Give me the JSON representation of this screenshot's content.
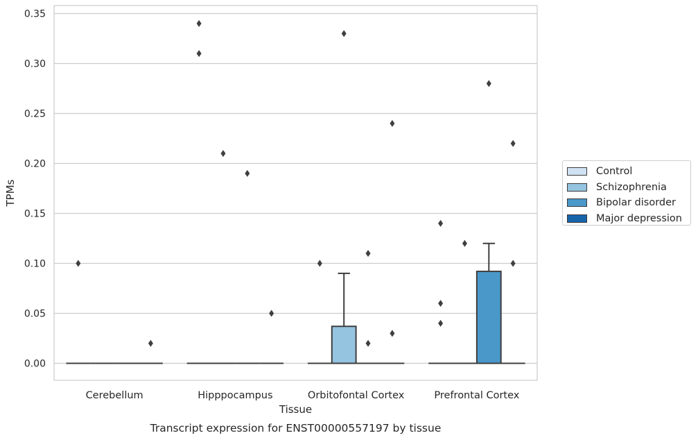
{
  "chart_data": {
    "type": "box",
    "title": "Transcript expression for ENST00000557197 by tissue",
    "xlabel": "Tissue",
    "ylabel": "TPMs",
    "categories": [
      "Cerebellum",
      "Hipppocampus",
      "Orbitofontal Cortex",
      "Prefrontal Cortex"
    ],
    "ylim": [
      -0.017,
      0.358
    ],
    "yticks": [
      "0.00",
      "0.05",
      "0.10",
      "0.15",
      "0.20",
      "0.25",
      "0.30",
      "0.35"
    ],
    "grid": true,
    "legend_position": "right",
    "series": [
      {
        "name": "Control",
        "color": "#d0e1f2",
        "boxes": [
          {
            "q1": 0,
            "median": 0,
            "q3": 0,
            "whisker_low": 0,
            "whisker_high": 0,
            "outliers": [
              0.1
            ]
          },
          {
            "q1": 0,
            "median": 0,
            "q3": 0,
            "whisker_low": 0,
            "whisker_high": 0,
            "outliers": [
              0.34,
              0.31
            ]
          },
          {
            "q1": 0,
            "median": 0,
            "q3": 0,
            "whisker_low": 0,
            "whisker_high": 0,
            "outliers": [
              0.1
            ]
          },
          {
            "q1": 0,
            "median": 0,
            "q3": 0,
            "whisker_low": 0,
            "whisker_high": 0,
            "outliers": [
              0.14,
              0.06,
              0.04
            ]
          }
        ]
      },
      {
        "name": "Schizophrenia",
        "color": "#94c4df",
        "boxes": [
          {
            "q1": 0,
            "median": 0,
            "q3": 0,
            "whisker_low": 0,
            "whisker_high": 0,
            "outliers": []
          },
          {
            "q1": 0,
            "median": 0,
            "q3": 0,
            "whisker_low": 0,
            "whisker_high": 0,
            "outliers": [
              0.21
            ]
          },
          {
            "q1": 0,
            "median": 0,
            "q3": 0.037,
            "whisker_low": 0,
            "whisker_high": 0.09,
            "outliers": [
              0.33
            ]
          },
          {
            "q1": 0,
            "median": 0,
            "q3": 0,
            "whisker_low": 0,
            "whisker_high": 0,
            "outliers": [
              0.12
            ]
          }
        ]
      },
      {
        "name": "Bipolar disorder",
        "color": "#4a98c9",
        "boxes": [
          {
            "q1": 0,
            "median": 0,
            "q3": 0,
            "whisker_low": 0,
            "whisker_high": 0,
            "outliers": []
          },
          {
            "q1": 0,
            "median": 0,
            "q3": 0,
            "whisker_low": 0,
            "whisker_high": 0,
            "outliers": [
              0.19
            ]
          },
          {
            "q1": 0,
            "median": 0,
            "q3": 0,
            "whisker_low": 0,
            "whisker_high": 0,
            "outliers": [
              0.11,
              0.02
            ]
          },
          {
            "q1": 0,
            "median": 0,
            "q3": 0.092,
            "whisker_low": 0,
            "whisker_high": 0.12,
            "outliers": [
              0.28
            ]
          }
        ]
      },
      {
        "name": "Major depression",
        "color": "#1764ab",
        "boxes": [
          {
            "q1": 0,
            "median": 0,
            "q3": 0,
            "whisker_low": 0,
            "whisker_high": 0,
            "outliers": [
              0.02
            ]
          },
          {
            "q1": 0,
            "median": 0,
            "q3": 0,
            "whisker_low": 0,
            "whisker_high": 0,
            "outliers": [
              0.05
            ]
          },
          {
            "q1": 0,
            "median": 0,
            "q3": 0,
            "whisker_low": 0,
            "whisker_high": 0,
            "outliers": [
              0.24,
              0.03
            ]
          },
          {
            "q1": 0,
            "median": 0,
            "q3": 0,
            "whisker_low": 0,
            "whisker_high": 0,
            "outliers": [
              0.22,
              0.1
            ]
          }
        ]
      }
    ]
  }
}
